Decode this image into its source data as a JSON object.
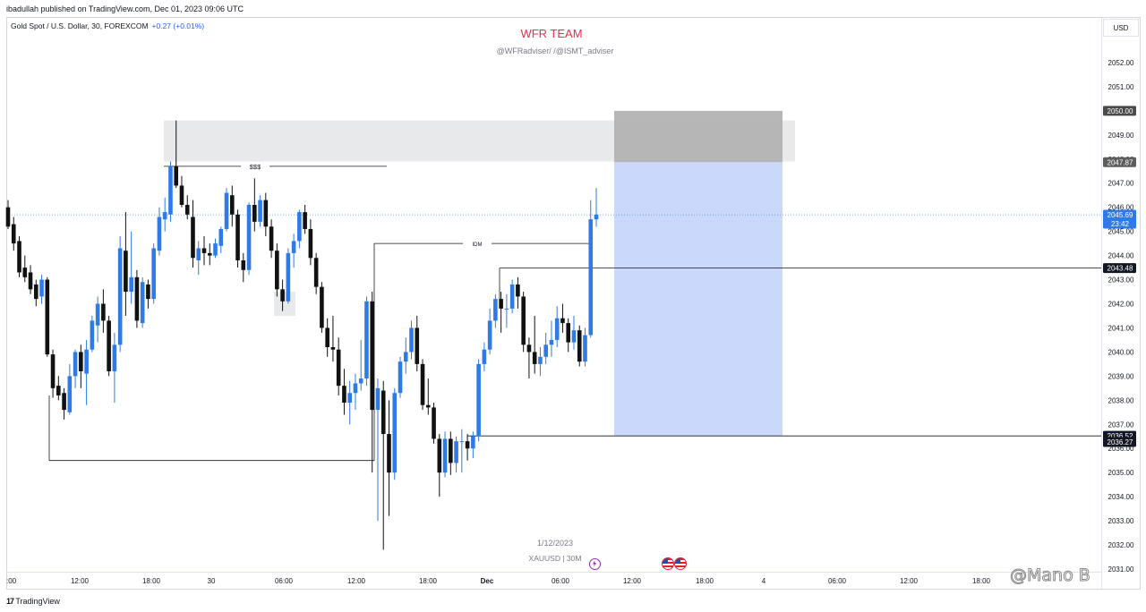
{
  "header": {
    "published": "ibadullah published on TradingView.com, Dec 01, 2023 09:06 UTC",
    "symbol": "Gold Spot / U.S. Dollar, 30, FOREXCOM",
    "change": "+0.27 (+0.01%)",
    "currency": "USD"
  },
  "watermark": {
    "title": "WFR TEAM",
    "subtitle": "@WFRadviser/ /@ISMT_adviser",
    "date": "1/12/2023",
    "symbol_tf": "XAUUSD | 30M"
  },
  "footer": {
    "logo": "TradingView",
    "credit": "@Mano B"
  },
  "colors": {
    "bull": "#2e7be8",
    "bear": "#111111",
    "position_zone": "#c9d8fb",
    "stop_zone": "#b3b3b3",
    "premium_zone": "#e8e9eb",
    "accent": "#e0334c"
  },
  "icons": {
    "flash": "lightning-icon",
    "events": "us-flag-icon"
  },
  "chart_data": {
    "type": "candlestick",
    "symbol": "XAUUSD",
    "timeframe": "30",
    "ylim": [
      2031.0,
      2053.0
    ],
    "y_ticks": [
      2031.0,
      2032.0,
      2033.0,
      2034.0,
      2035.0,
      2036.0,
      2037.0,
      2038.0,
      2039.0,
      2040.0,
      2041.0,
      2042.0,
      2043.0,
      2044.0,
      2045.0,
      2046.0,
      2047.0,
      2048.0,
      2049.0,
      2050.0,
      2051.0,
      2052.0
    ],
    "x_ticks": [
      ":00",
      "12:00",
      "18:00",
      "30",
      "06:00",
      "12:00",
      "18:00",
      "Dec",
      "06:00",
      "12:00",
      "18:00",
      "4",
      "06:00",
      "12:00",
      "18:00"
    ],
    "price_labels": [
      {
        "value": "2050.00",
        "bg": "#4a4a4a",
        "fg": "#ffffff"
      },
      {
        "value": "2047.87",
        "bg": "#5d5d5d",
        "fg": "#ffffff"
      },
      {
        "value": "2045.69",
        "bg": "#2e7be8",
        "fg": "#ffffff",
        "sub": "23:42"
      },
      {
        "value": "2043.48",
        "bg": "#131722",
        "fg": "#ffffff"
      },
      {
        "value": "2036.53",
        "bg": "#2962ff",
        "fg": "#ffffff"
      },
      {
        "value": "2036.52",
        "bg": "#131722",
        "fg": "#ffffff"
      },
      {
        "value": "2036.27",
        "bg": "#131722",
        "fg": "#ffffff"
      }
    ],
    "annotations": [
      {
        "text": "$$$",
        "price": 2047.7
      },
      {
        "text": "IDM",
        "price": 2044.5
      }
    ],
    "levels": {
      "high_line": 2047.7,
      "idm": 2044.5,
      "low_left": 2035.5,
      "level_2043": 2043.48,
      "level_2036": 2036.52
    },
    "zones": {
      "premium": {
        "top": 2049.6,
        "bottom": 2047.9
      },
      "stop": {
        "top": 2050.0,
        "bottom": 2047.87
      },
      "target": {
        "top": 2047.87,
        "bottom": 2036.52
      }
    },
    "last_price": 2045.69,
    "candles": [
      [
        2046.0,
        2046.3,
        2045.1,
        2045.2
      ],
      [
        2045.3,
        2045.6,
        2044.2,
        2044.5
      ],
      [
        2044.6,
        2044.8,
        2043.1,
        2043.3
      ],
      [
        2043.5,
        2044.0,
        2042.9,
        2043.1
      ],
      [
        2043.3,
        2043.6,
        2042.4,
        2042.6
      ],
      [
        2042.8,
        2043.0,
        2041.9,
        2042.2
      ],
      [
        2042.3,
        2043.2,
        2042.0,
        2043.0
      ],
      [
        2043.0,
        2043.1,
        2039.8,
        2039.9
      ],
      [
        2039.9,
        2040.1,
        2038.1,
        2038.5
      ],
      [
        2038.6,
        2039.0,
        2038.0,
        2038.2
      ],
      [
        2038.3,
        2038.5,
        2037.2,
        2037.6
      ],
      [
        2037.5,
        2039.5,
        2037.4,
        2039.0
      ],
      [
        2039.0,
        2040.1,
        2038.5,
        2040.0
      ],
      [
        2040.0,
        2040.3,
        2038.5,
        2039.2
      ],
      [
        2039.1,
        2040.5,
        2037.8,
        2040.1
      ],
      [
        2040.1,
        2041.5,
        2040.0,
        2041.3
      ],
      [
        2041.1,
        2042.3,
        2040.4,
        2042.0
      ],
      [
        2042.0,
        2042.6,
        2040.8,
        2041.3
      ],
      [
        2041.3,
        2041.5,
        2039.0,
        2039.2
      ],
      [
        2039.2,
        2040.8,
        2037.9,
        2040.3
      ],
      [
        2040.3,
        2044.8,
        2040.0,
        2044.3
      ],
      [
        2044.2,
        2045.8,
        2041.5,
        2042.5
      ],
      [
        2042.5,
        2045.0,
        2042.0,
        2043.1
      ],
      [
        2043.1,
        2043.4,
        2041.0,
        2041.3
      ],
      [
        2041.2,
        2043.1,
        2041.0,
        2042.9
      ],
      [
        2042.8,
        2043.0,
        2041.8,
        2042.2
      ],
      [
        2042.2,
        2044.5,
        2042.0,
        2044.3
      ],
      [
        2044.2,
        2046.0,
        2044.0,
        2045.6
      ],
      [
        2045.5,
        2046.4,
        2045.0,
        2045.8
      ],
      [
        2045.7,
        2047.9,
        2045.4,
        2047.7
      ],
      [
        2047.7,
        2049.6,
        2046.8,
        2046.9
      ],
      [
        2046.9,
        2047.3,
        2046.0,
        2046.1
      ],
      [
        2046.1,
        2046.5,
        2045.5,
        2045.7
      ],
      [
        2045.6,
        2046.3,
        2043.5,
        2043.9
      ],
      [
        2043.8,
        2044.6,
        2043.2,
        2044.3
      ],
      [
        2044.3,
        2044.8,
        2043.6,
        2044.1
      ],
      [
        2044.1,
        2044.5,
        2043.6,
        2044.0
      ],
      [
        2044.0,
        2044.7,
        2043.9,
        2044.5
      ],
      [
        2044.4,
        2045.2,
        2044.1,
        2045.1
      ],
      [
        2045.1,
        2046.8,
        2045.0,
        2046.6
      ],
      [
        2046.5,
        2046.9,
        2045.2,
        2045.7
      ],
      [
        2045.7,
        2045.9,
        2043.5,
        2043.8
      ],
      [
        2043.8,
        2044.1,
        2042.9,
        2043.4
      ],
      [
        2043.4,
        2046.2,
        2043.2,
        2046.1
      ],
      [
        2046.1,
        2047.2,
        2045.0,
        2045.4
      ],
      [
        2045.4,
        2046.5,
        2045.2,
        2046.3
      ],
      [
        2046.3,
        2046.6,
        2044.8,
        2045.2
      ],
      [
        2045.2,
        2045.5,
        2043.9,
        2044.2
      ],
      [
        2044.2,
        2044.5,
        2042.3,
        2042.6
      ],
      [
        2042.6,
        2043.0,
        2041.7,
        2042.1
      ],
      [
        2042.1,
        2044.3,
        2042.0,
        2044.1
      ],
      [
        2044.1,
        2044.9,
        2043.5,
        2044.6
      ],
      [
        2044.6,
        2045.9,
        2044.3,
        2045.8
      ],
      [
        2045.8,
        2046.1,
        2044.9,
        2045.1
      ],
      [
        2045.1,
        2045.5,
        2043.6,
        2043.9
      ],
      [
        2043.9,
        2044.1,
        2042.4,
        2042.7
      ],
      [
        2042.7,
        2042.9,
        2040.8,
        2041.0
      ],
      [
        2041.0,
        2041.4,
        2039.8,
        2040.2
      ],
      [
        2040.2,
        2041.5,
        2039.6,
        2040.1
      ],
      [
        2040.1,
        2040.6,
        2038.2,
        2038.6
      ],
      [
        2038.6,
        2039.3,
        2037.4,
        2037.9
      ],
      [
        2037.9,
        2038.8,
        2037.0,
        2038.3
      ],
      [
        2038.3,
        2039.1,
        2037.6,
        2038.7
      ],
      [
        2038.7,
        2040.5,
        2038.4,
        2038.9
      ],
      [
        2038.9,
        2042.3,
        2038.6,
        2042.1
      ],
      [
        2042.1,
        2042.5,
        2035.0,
        2037.6
      ],
      [
        2037.6,
        2038.9,
        2033.0,
        2038.5
      ],
      [
        2038.4,
        2038.8,
        2031.8,
        2036.6
      ],
      [
        2036.6,
        2038.0,
        2033.2,
        2035.0
      ],
      [
        2035.0,
        2038.5,
        2034.7,
        2038.3
      ],
      [
        2038.3,
        2039.8,
        2038.1,
        2039.6
      ],
      [
        2039.6,
        2040.6,
        2039.1,
        2040.0
      ],
      [
        2040.0,
        2041.3,
        2039.7,
        2041.0
      ],
      [
        2041.0,
        2041.5,
        2039.2,
        2039.5
      ],
      [
        2039.5,
        2039.7,
        2037.6,
        2037.8
      ],
      [
        2037.8,
        2038.9,
        2037.4,
        2037.7
      ],
      [
        2037.7,
        2037.9,
        2036.2,
        2036.4
      ],
      [
        2036.4,
        2036.6,
        2034.0,
        2035.0
      ],
      [
        2035.0,
        2036.7,
        2034.8,
        2036.4
      ],
      [
        2036.4,
        2036.7,
        2034.9,
        2035.4
      ],
      [
        2035.4,
        2036.5,
        2035.0,
        2036.3
      ],
      [
        2036.3,
        2036.8,
        2035.0,
        2036.3
      ],
      [
        2036.3,
        2036.6,
        2035.5,
        2036.0
      ],
      [
        2036.0,
        2036.7,
        2035.6,
        2036.5
      ],
      [
        2036.5,
        2039.7,
        2036.3,
        2039.5
      ],
      [
        2039.5,
        2040.4,
        2039.2,
        2040.1
      ],
      [
        2040.1,
        2041.8,
        2039.9,
        2041.3
      ],
      [
        2041.3,
        2042.4,
        2041.0,
        2042.2
      ],
      [
        2042.2,
        2042.5,
        2040.8,
        2041.8
      ],
      [
        2041.8,
        2042.4,
        2041.0,
        2041.8
      ],
      [
        2041.8,
        2043.0,
        2041.6,
        2042.8
      ],
      [
        2042.8,
        2043.1,
        2041.8,
        2042.3
      ],
      [
        2042.3,
        2042.5,
        2040.0,
        2040.3
      ],
      [
        2040.3,
        2040.6,
        2038.9,
        2040.0
      ],
      [
        2040.0,
        2041.5,
        2039.1,
        2039.5
      ],
      [
        2039.5,
        2040.2,
        2039.0,
        2039.8
      ],
      [
        2039.8,
        2040.8,
        2039.5,
        2040.3
      ],
      [
        2040.3,
        2041.3,
        2039.8,
        2040.5
      ],
      [
        2040.5,
        2041.9,
        2040.2,
        2041.4
      ],
      [
        2041.4,
        2042.0,
        2040.8,
        2041.2
      ],
      [
        2041.2,
        2041.4,
        2040.0,
        2040.4
      ],
      [
        2040.4,
        2041.5,
        2040.1,
        2040.9
      ],
      [
        2040.9,
        2041.1,
        2039.4,
        2039.6
      ],
      [
        2039.6,
        2041.0,
        2039.4,
        2040.7
      ],
      [
        2040.7,
        2046.3,
        2040.6,
        2045.5
      ],
      [
        2045.5,
        2046.8,
        2045.2,
        2045.7
      ]
    ]
  }
}
